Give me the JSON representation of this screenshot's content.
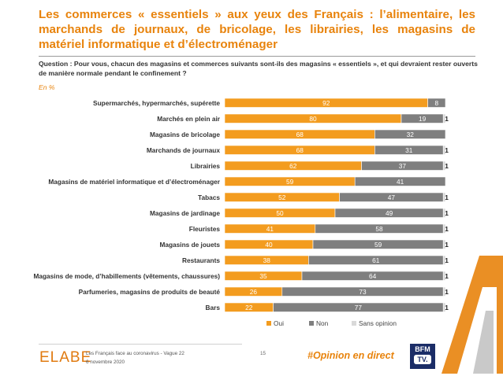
{
  "header": {
    "title": "Les commerces « essentiels » aux yeux des Français : l’alimentaire, les marchands de journaux, de bricolage, les librairies, les magasins de matériel informatique et d’électroménager",
    "question": "Question : Pour vous, chacun des magasins et commerces suivants sont-ils des magasins « essentiels », et qui devraient rester ouverts de manière normale pendant le confinement ?",
    "unit": "En %"
  },
  "chart_data": {
    "type": "bar",
    "orientation": "horizontal",
    "stacked": true,
    "categories": [
      "Supermarchés, hypermarchés, supérette",
      "Marchés en plein air",
      "Magasins de bricolage",
      "Marchands de journaux",
      "Librairies",
      "Magasins de matériel informatique et d’électroménager",
      "Tabacs",
      "Magasins de jardinage",
      "Fleuristes",
      "Magasins de jouets",
      "Restaurants",
      "Magasins de mode, d’habillements (vêtements, chaussures)",
      "Parfumeries, magasins de produits de beauté",
      "Bars"
    ],
    "series": [
      {
        "name": "Oui",
        "color": "#f39c1f",
        "values": [
          92,
          80,
          68,
          68,
          62,
          59,
          52,
          50,
          41,
          40,
          38,
          35,
          26,
          22
        ]
      },
      {
        "name": "Non",
        "color": "#7f7f7f",
        "values": [
          8,
          19,
          32,
          31,
          37,
          41,
          47,
          49,
          58,
          59,
          61,
          64,
          73,
          77
        ]
      },
      {
        "name": "Sans opinion",
        "color": "#d9d9d9",
        "values": [
          0,
          1,
          0,
          1,
          1,
          0,
          1,
          1,
          1,
          1,
          1,
          1,
          1,
          1
        ]
      }
    ],
    "xlim": [
      0,
      100
    ],
    "legend": "bottom"
  },
  "footer": {
    "logo": "ELABE",
    "line1": "Les Français face au coronavirus - Vague 22",
    "line2": "6 novembre 2020",
    "page": "15",
    "hashtag": "#Opinion en direct",
    "bfm_top": "BFM",
    "bfm_bottom": "TV."
  }
}
